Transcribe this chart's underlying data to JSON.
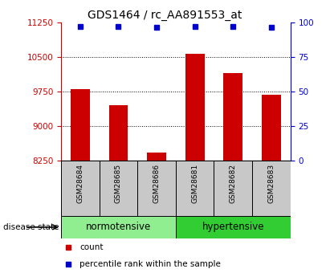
{
  "title": "GDS1464 / rc_AA891553_at",
  "samples": [
    "GSM28684",
    "GSM28685",
    "GSM28686",
    "GSM28681",
    "GSM28682",
    "GSM28683"
  ],
  "counts": [
    9800,
    9450,
    8430,
    10560,
    10150,
    9680
  ],
  "percentile_values": [
    97,
    97,
    96,
    97,
    97,
    96
  ],
  "groups": [
    "normotensive",
    "normotensive",
    "normotensive",
    "hypertensive",
    "hypertensive",
    "hypertensive"
  ],
  "norm_color": "#90EE90",
  "hyper_color": "#32CD32",
  "bar_color": "#CC0000",
  "dot_color": "#0000CC",
  "ylim_left": [
    8250,
    11250
  ],
  "ylim_right": [
    0,
    100
  ],
  "yticks_left": [
    8250,
    9000,
    9750,
    10500,
    11250
  ],
  "yticks_right": [
    0,
    25,
    50,
    75,
    100
  ],
  "left_tick_color": "#CC0000",
  "right_tick_color": "#0000CC",
  "title_fontsize": 10,
  "tick_label_fontsize": 7.5,
  "sample_fontsize": 6.5,
  "group_fontsize": 8.5,
  "legend_fontsize": 7.5,
  "disease_state_label": "disease state",
  "legend_items": [
    "count",
    "percentile rank within the sample"
  ],
  "legend_colors": [
    "#CC0000",
    "#0000CC"
  ],
  "bar_width": 0.5,
  "sample_box_color": "#C8C8C8",
  "grid_style": ":"
}
